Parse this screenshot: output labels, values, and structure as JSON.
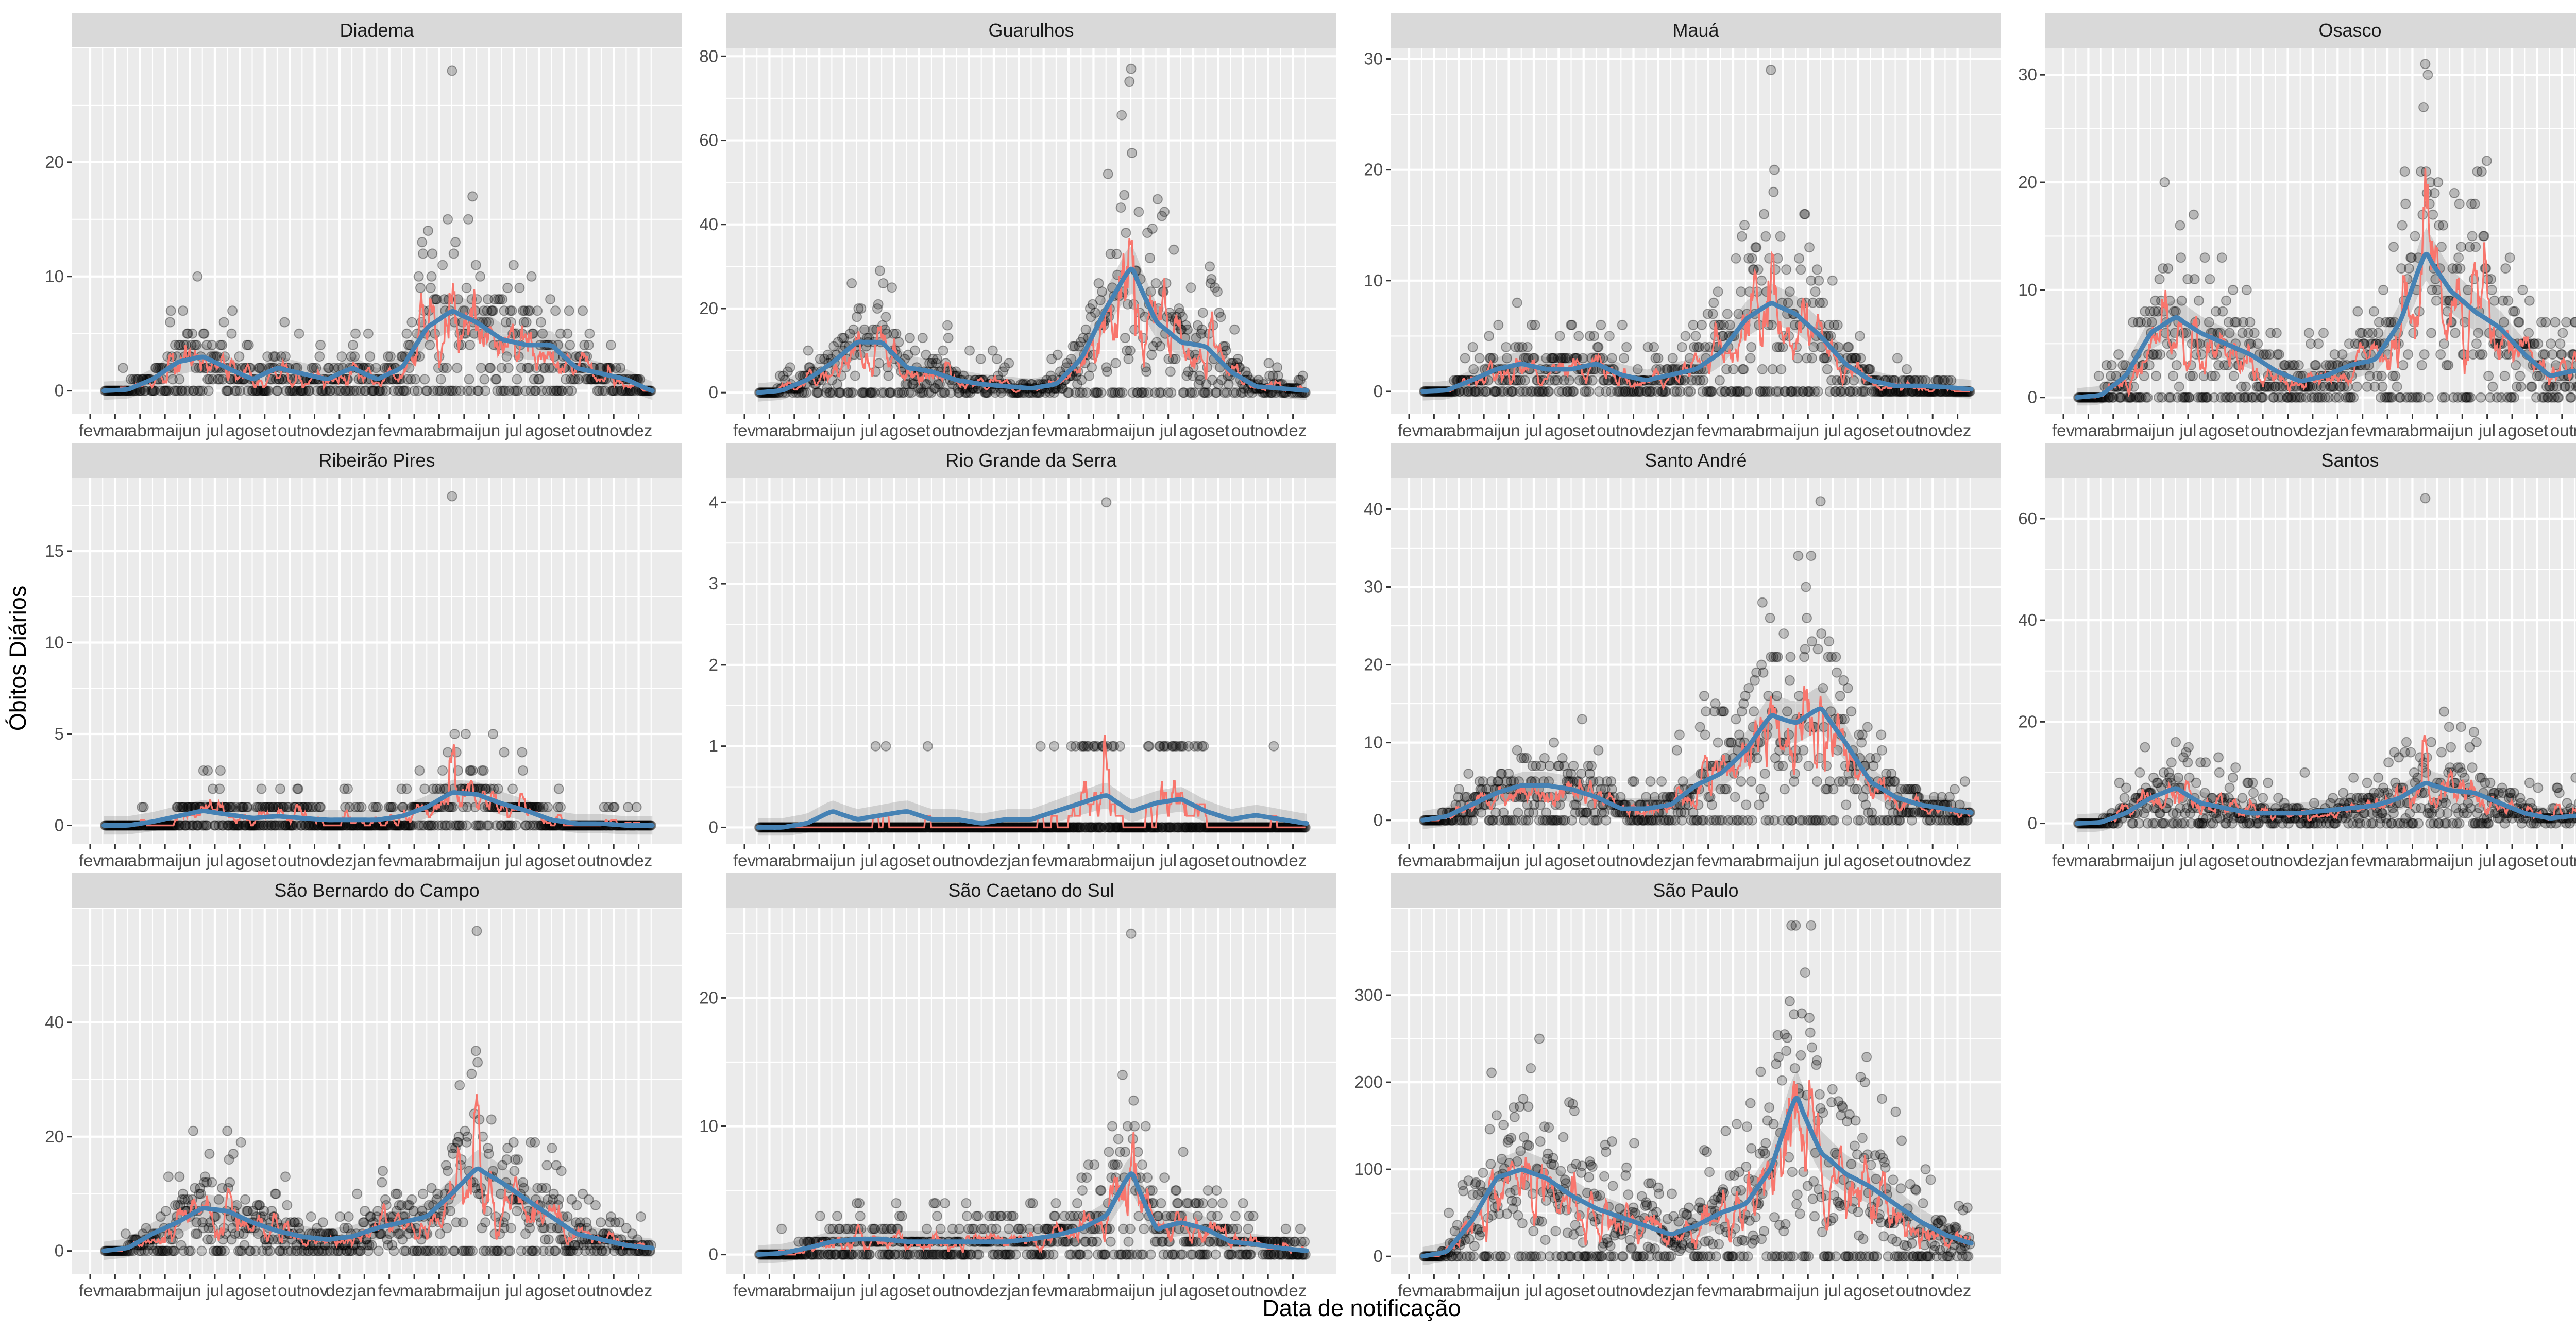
{
  "chart_data": {
    "type": "scatter",
    "description_layers": [
      "points",
      "daily_line",
      "loess_smooth",
      "confidence_band"
    ],
    "xlabel": "Data de notificação",
    "ylabel": "Óbitos Diários",
    "x_tick_labels": [
      "fev",
      "mar",
      "abr",
      "mai",
      "jun",
      "jul",
      "ago",
      "set",
      "out",
      "nov",
      "dez",
      "jan",
      "fev",
      "mar",
      "abr",
      "mai",
      "jun",
      "jul",
      "ago",
      "set",
      "out",
      "nov",
      "dez"
    ],
    "x_range_months": [
      0,
      23
    ],
    "colors": {
      "points": "#000000",
      "daily_line": "#F8766D",
      "smooth": "#4682B4",
      "band": "#999999",
      "panel": "#EBEBEB",
      "strip": "#D9D9D9"
    },
    "panels": [
      {
        "name": "Diadema",
        "y_max": 28,
        "ylim": [
          -2,
          30
        ],
        "y_ticks": [
          0,
          10,
          20
        ],
        "smooth": [
          [
            0.5,
            0
          ],
          [
            1.5,
            0.1
          ],
          [
            2.5,
            1
          ],
          [
            3.5,
            2.5
          ],
          [
            4.5,
            3
          ],
          [
            5.5,
            2
          ],
          [
            6.5,
            1
          ],
          [
            7.5,
            2
          ],
          [
            8.5,
            1.5
          ],
          [
            9.5,
            1
          ],
          [
            10.5,
            2
          ],
          [
            11.5,
            1
          ],
          [
            12.5,
            2
          ],
          [
            13.5,
            5.5
          ],
          [
            14.5,
            7
          ],
          [
            15.5,
            6
          ],
          [
            16.5,
            4.5
          ],
          [
            17.5,
            4
          ],
          [
            18.5,
            4
          ],
          [
            19.5,
            2
          ],
          [
            20.5,
            1.5
          ],
          [
            21.5,
            1
          ],
          [
            22.5,
            0
          ]
        ]
      },
      {
        "name": "Guarulhos",
        "y_max": 77,
        "ylim": [
          -5,
          82
        ],
        "y_ticks": [
          0,
          20,
          40,
          60,
          80
        ],
        "smooth": [
          [
            0.5,
            0
          ],
          [
            1.5,
            0.5
          ],
          [
            2.5,
            3
          ],
          [
            3.5,
            7
          ],
          [
            4.5,
            12
          ],
          [
            5.5,
            12
          ],
          [
            6.5,
            6
          ],
          [
            7.5,
            5
          ],
          [
            8.5,
            3
          ],
          [
            9.5,
            2
          ],
          [
            10.5,
            1.5
          ],
          [
            11.5,
            1
          ],
          [
            12.5,
            2
          ],
          [
            13.5,
            8
          ],
          [
            14.5,
            20
          ],
          [
            15.5,
            30
          ],
          [
            16.5,
            17
          ],
          [
            17.5,
            12
          ],
          [
            18.5,
            11
          ],
          [
            19.5,
            5
          ],
          [
            20.5,
            1.5
          ],
          [
            21.5,
            1
          ],
          [
            22.5,
            0.5
          ]
        ]
      },
      {
        "name": "Mauá",
        "y_max": 29,
        "ylim": [
          -2,
          31
        ],
        "y_ticks": [
          0,
          10,
          20,
          30
        ],
        "smooth": [
          [
            0.5,
            0
          ],
          [
            1.5,
            0.1
          ],
          [
            2.5,
            1
          ],
          [
            3.5,
            2
          ],
          [
            4.5,
            2.5
          ],
          [
            5.5,
            2
          ],
          [
            6.5,
            2
          ],
          [
            7.5,
            2.5
          ],
          [
            8.5,
            1.5
          ],
          [
            9.5,
            1
          ],
          [
            10.5,
            1.5
          ],
          [
            11.5,
            2
          ],
          [
            12.5,
            3.5
          ],
          [
            13.5,
            6.5
          ],
          [
            14.5,
            8
          ],
          [
            15.5,
            7
          ],
          [
            16.5,
            5
          ],
          [
            17.5,
            2.5
          ],
          [
            18.5,
            1
          ],
          [
            19.5,
            0.5
          ],
          [
            20.5,
            0.5
          ],
          [
            21.5,
            0.4
          ],
          [
            22.5,
            0.2
          ]
        ]
      },
      {
        "name": "Osasco",
        "y_max": 31,
        "ylim": [
          -1.5,
          32.5
        ],
        "y_ticks": [
          0,
          10,
          20,
          30
        ],
        "smooth": [
          [
            0.5,
            0
          ],
          [
            1.5,
            0.2
          ],
          [
            2.5,
            2
          ],
          [
            3.5,
            6
          ],
          [
            4.5,
            7.5
          ],
          [
            5.5,
            6
          ],
          [
            6.5,
            5
          ],
          [
            7.5,
            4
          ],
          [
            8.5,
            2.5
          ],
          [
            9.5,
            1.5
          ],
          [
            10.5,
            2
          ],
          [
            11.5,
            3
          ],
          [
            12.5,
            3.5
          ],
          [
            13.5,
            7
          ],
          [
            14.5,
            13.5
          ],
          [
            15.5,
            10
          ],
          [
            16.5,
            8
          ],
          [
            17.5,
            6.5
          ],
          [
            18.5,
            4
          ],
          [
            19.5,
            2
          ],
          [
            20.5,
            2.5
          ],
          [
            21.5,
            1.5
          ],
          [
            22.5,
            0.5
          ]
        ]
      },
      {
        "name": "Ribeirão Pires",
        "y_max": 18,
        "ylim": [
          -1,
          19
        ],
        "y_ticks": [
          0,
          5,
          10,
          15
        ],
        "smooth": [
          [
            0.5,
            0
          ],
          [
            1.5,
            0
          ],
          [
            2.5,
            0.2
          ],
          [
            3.5,
            0.5
          ],
          [
            4.5,
            0.8
          ],
          [
            5.5,
            0.6
          ],
          [
            6.5,
            0.4
          ],
          [
            7.5,
            0.5
          ],
          [
            8.5,
            0.4
          ],
          [
            9.5,
            0.3
          ],
          [
            10.5,
            0.3
          ],
          [
            11.5,
            0.3
          ],
          [
            12.5,
            0.5
          ],
          [
            13.5,
            1
          ],
          [
            14.5,
            1.8
          ],
          [
            15.5,
            1.7
          ],
          [
            16.5,
            1.2
          ],
          [
            17.5,
            0.8
          ],
          [
            18.5,
            0.3
          ],
          [
            19.5,
            0.1
          ],
          [
            20.5,
            0.1
          ],
          [
            21.5,
            0
          ],
          [
            22.5,
            0
          ]
        ]
      },
      {
        "name": "Rio Grande da Serra",
        "y_max": 4,
        "ylim": [
          -0.2,
          4.3
        ],
        "y_ticks": [
          0,
          1,
          2,
          3,
          4
        ],
        "smooth": [
          [
            0.5,
            0
          ],
          [
            1.5,
            0
          ],
          [
            2.5,
            0.05
          ],
          [
            3.5,
            0.2
          ],
          [
            4.5,
            0.1
          ],
          [
            5.5,
            0.15
          ],
          [
            6.5,
            0.2
          ],
          [
            7.5,
            0.1
          ],
          [
            8.5,
            0.1
          ],
          [
            9.5,
            0.05
          ],
          [
            10.5,
            0.1
          ],
          [
            11.5,
            0.1
          ],
          [
            12.5,
            0.2
          ],
          [
            13.5,
            0.3
          ],
          [
            14.5,
            0.4
          ],
          [
            15.5,
            0.2
          ],
          [
            16.5,
            0.3
          ],
          [
            17.5,
            0.35
          ],
          [
            18.5,
            0.2
          ],
          [
            19.5,
            0.1
          ],
          [
            20.5,
            0.15
          ],
          [
            21.5,
            0.1
          ],
          [
            22.5,
            0.05
          ]
        ]
      },
      {
        "name": "Santo André",
        "y_max": 41,
        "ylim": [
          -3,
          44
        ],
        "y_ticks": [
          0,
          10,
          20,
          30,
          40
        ],
        "smooth": [
          [
            0.5,
            0
          ],
          [
            1.5,
            0.5
          ],
          [
            2.5,
            2
          ],
          [
            3.5,
            3.5
          ],
          [
            4.5,
            4.5
          ],
          [
            5.5,
            4.5
          ],
          [
            6.5,
            4
          ],
          [
            7.5,
            3
          ],
          [
            8.5,
            1.5
          ],
          [
            9.5,
            1.5
          ],
          [
            10.5,
            2
          ],
          [
            11.5,
            4.5
          ],
          [
            12.5,
            6
          ],
          [
            13.5,
            9
          ],
          [
            14.5,
            13.5
          ],
          [
            15.5,
            12.5
          ],
          [
            16.5,
            14.5
          ],
          [
            17.5,
            10
          ],
          [
            18.5,
            5
          ],
          [
            19.5,
            3
          ],
          [
            20.5,
            2
          ],
          [
            21.5,
            1.5
          ],
          [
            22.5,
            1
          ]
        ]
      },
      {
        "name": "Santos",
        "y_max": 64,
        "ylim": [
          -4,
          68
        ],
        "y_ticks": [
          0,
          20,
          40,
          60
        ],
        "smooth": [
          [
            0.5,
            0
          ],
          [
            1.5,
            0.2
          ],
          [
            2.5,
            2
          ],
          [
            3.5,
            5
          ],
          [
            4.5,
            7
          ],
          [
            5.5,
            4
          ],
          [
            6.5,
            3
          ],
          [
            7.5,
            2
          ],
          [
            8.5,
            2
          ],
          [
            9.5,
            2
          ],
          [
            10.5,
            2.5
          ],
          [
            11.5,
            3
          ],
          [
            12.5,
            3.5
          ],
          [
            13.5,
            5
          ],
          [
            14.5,
            8
          ],
          [
            15.5,
            6.5
          ],
          [
            16.5,
            6
          ],
          [
            17.5,
            4
          ],
          [
            18.5,
            2
          ],
          [
            19.5,
            1
          ],
          [
            20.5,
            1.5
          ],
          [
            21.5,
            1
          ],
          [
            22.5,
            0.5
          ]
        ]
      },
      {
        "name": "São Bernardo do Campo",
        "y_max": 56,
        "ylim": [
          -4,
          60
        ],
        "y_ticks": [
          0,
          20,
          40
        ],
        "smooth": [
          [
            0.5,
            0
          ],
          [
            1.5,
            0.5
          ],
          [
            2.5,
            3
          ],
          [
            3.5,
            5
          ],
          [
            4.5,
            7.5
          ],
          [
            5.5,
            7
          ],
          [
            6.5,
            5
          ],
          [
            7.5,
            3.5
          ],
          [
            8.5,
            2.5
          ],
          [
            9.5,
            2
          ],
          [
            10.5,
            2.5
          ],
          [
            11.5,
            4
          ],
          [
            12.5,
            5
          ],
          [
            13.5,
            6
          ],
          [
            14.5,
            10
          ],
          [
            15.5,
            14.5
          ],
          [
            16.5,
            12
          ],
          [
            17.5,
            9
          ],
          [
            18.5,
            6
          ],
          [
            19.5,
            3
          ],
          [
            20.5,
            2
          ],
          [
            21.5,
            1
          ],
          [
            22.5,
            0.5
          ]
        ]
      },
      {
        "name": "São Caetano do Sul",
        "y_max": 25,
        "ylim": [
          -1.5,
          27
        ],
        "y_ticks": [
          0,
          10,
          20
        ],
        "smooth": [
          [
            0.5,
            0
          ],
          [
            1.5,
            0.1
          ],
          [
            2.5,
            0.5
          ],
          [
            3.5,
            1
          ],
          [
            4.5,
            1.2
          ],
          [
            5.5,
            1.2
          ],
          [
            6.5,
            1
          ],
          [
            7.5,
            1
          ],
          [
            8.5,
            1
          ],
          [
            9.5,
            1
          ],
          [
            10.5,
            1
          ],
          [
            11.5,
            1.2
          ],
          [
            12.5,
            1.5
          ],
          [
            13.5,
            2
          ],
          [
            14.5,
            3
          ],
          [
            15.5,
            6.5
          ],
          [
            16.5,
            2
          ],
          [
            17.5,
            2.5
          ],
          [
            18.5,
            2
          ],
          [
            19.5,
            1
          ],
          [
            20.5,
            0.8
          ],
          [
            21.5,
            0.5
          ],
          [
            22.5,
            0.3
          ]
        ]
      },
      {
        "name": "São Paulo",
        "y_max": 380,
        "ylim": [
          -20,
          400
        ],
        "y_ticks": [
          0,
          100,
          200,
          300
        ],
        "smooth": [
          [
            0.5,
            0
          ],
          [
            1.5,
            5
          ],
          [
            2.5,
            40
          ],
          [
            3.5,
            90
          ],
          [
            4.5,
            100
          ],
          [
            5.5,
            90
          ],
          [
            6.5,
            70
          ],
          [
            7.5,
            55
          ],
          [
            8.5,
            45
          ],
          [
            9.5,
            35
          ],
          [
            10.5,
            25
          ],
          [
            11.5,
            35
          ],
          [
            12.5,
            50
          ],
          [
            13.5,
            60
          ],
          [
            14.5,
            100
          ],
          [
            15.5,
            185
          ],
          [
            16.5,
            120
          ],
          [
            17.5,
            95
          ],
          [
            18.5,
            80
          ],
          [
            19.5,
            60
          ],
          [
            20.5,
            40
          ],
          [
            21.5,
            25
          ],
          [
            22.5,
            15
          ]
        ]
      }
    ]
  }
}
